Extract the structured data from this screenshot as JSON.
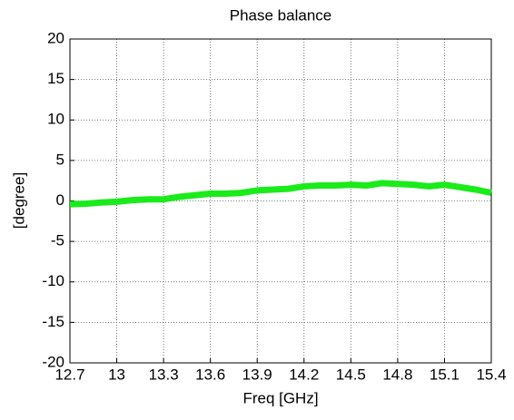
{
  "chart_data": {
    "type": "line",
    "title": "Phase balance",
    "xlabel": "Freq [GHz]",
    "ylabel": "[degree]",
    "x": [
      12.7,
      12.8,
      12.9,
      13.0,
      13.1,
      13.2,
      13.3,
      13.4,
      13.5,
      13.6,
      13.7,
      13.8,
      13.9,
      14.0,
      14.1,
      14.2,
      14.3,
      14.4,
      14.5,
      14.6,
      14.7,
      14.8,
      14.9,
      15.0,
      15.1,
      15.2,
      15.3,
      15.4
    ],
    "series": [
      {
        "color": "#1aeb1a",
        "values": [
          -0.4,
          -0.35,
          -0.2,
          -0.1,
          0.1,
          0.2,
          0.2,
          0.5,
          0.7,
          0.9,
          0.9,
          1.0,
          1.3,
          1.4,
          1.5,
          1.8,
          1.9,
          1.9,
          2.0,
          1.9,
          2.2,
          2.1,
          2.0,
          1.8,
          2.0,
          1.7,
          1.4,
          1.0
        ]
      }
    ],
    "xlim": [
      12.7,
      15.4
    ],
    "xticks": [
      12.7,
      13,
      13.3,
      13.6,
      13.9,
      14.2,
      14.5,
      14.8,
      15.1,
      15.4
    ],
    "ylim": [
      -20,
      20
    ],
    "yticks": [
      -20,
      -15,
      -10,
      -5,
      0,
      5,
      10,
      15,
      20
    ],
    "grid": true
  }
}
